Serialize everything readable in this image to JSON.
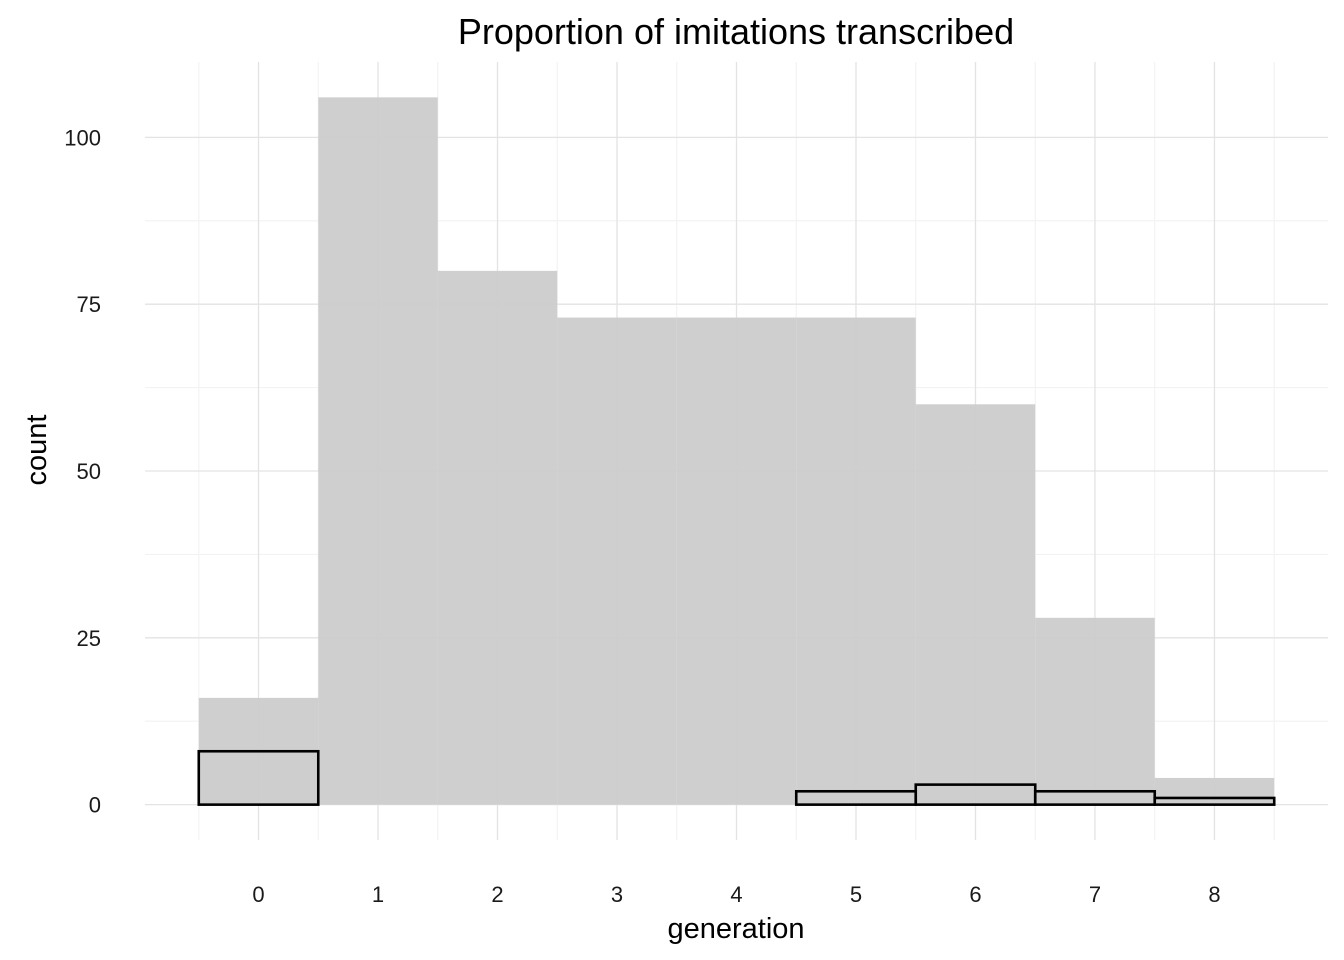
{
  "chart_data": {
    "type": "bar",
    "title": "Proportion of imitations transcribed",
    "xlabel": "generation",
    "ylabel": "count",
    "categories": [
      "0",
      "1",
      "2",
      "3",
      "4",
      "5",
      "6",
      "7",
      "8"
    ],
    "x": [
      0,
      1,
      2,
      3,
      4,
      5,
      6,
      7,
      8
    ],
    "series": [
      {
        "values": [
          16,
          106,
          80,
          73,
          73,
          73,
          60,
          28,
          4
        ],
        "fill": "#cccccc",
        "outline": "none"
      },
      {
        "values": [
          8,
          0,
          0,
          0,
          0,
          2,
          3,
          2,
          1
        ],
        "fill": "#cccccc",
        "outline": "#000000"
      }
    ],
    "xlim": [
      -0.95,
      8.95
    ],
    "ylim": [
      -5.3,
      111.3
    ],
    "yticks": [
      0,
      25,
      50,
      75,
      100
    ],
    "yticks_minor": [
      12.5,
      37.5,
      62.5,
      87.5
    ],
    "xticks_minor": [
      -0.5,
      0.5,
      1.5,
      2.5,
      3.5,
      4.5,
      5.5,
      6.5,
      7.5,
      8.5
    ],
    "grid": true,
    "theme": "minimal",
    "legend": "none"
  }
}
